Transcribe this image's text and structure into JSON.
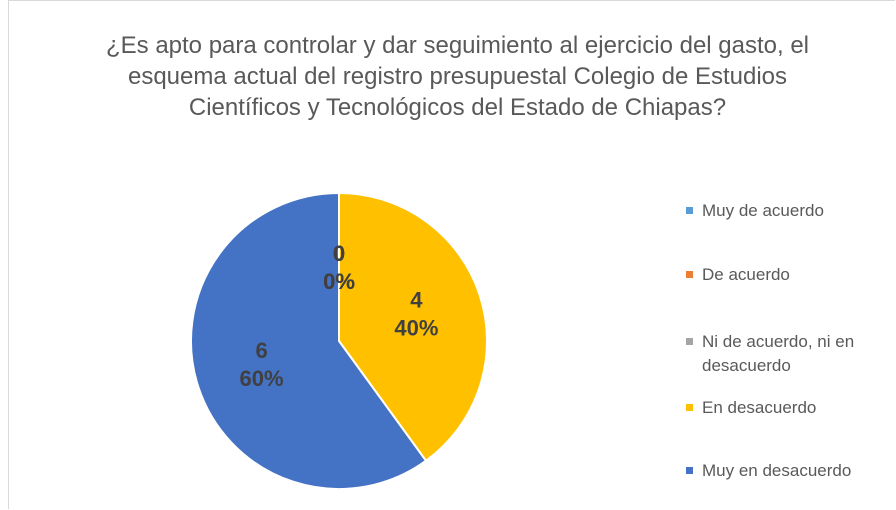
{
  "chart_data": {
    "type": "pie",
    "title": "¿Es apto para controlar y dar seguimiento al ejercicio del gasto, el esquema actual del registro presupuestal Colegio de Estudios Científicos y Tecnológicos del Estado de Chiapas?",
    "categories": [
      "Muy de acuerdo",
      "De acuerdo",
      "Ni de acuerdo, ni en desacuerdo",
      "En desacuerdo",
      "Muy en desacuerdo"
    ],
    "values": [
      0,
      0,
      0,
      4,
      6
    ],
    "value_labels": [
      "0%",
      "0%",
      "0%",
      "40%",
      "60%"
    ],
    "colors": [
      "#5b9bd5",
      "#ed7d31",
      "#a5a5a5",
      "#ffc000",
      "#4472c4"
    ],
    "legend": "right"
  }
}
